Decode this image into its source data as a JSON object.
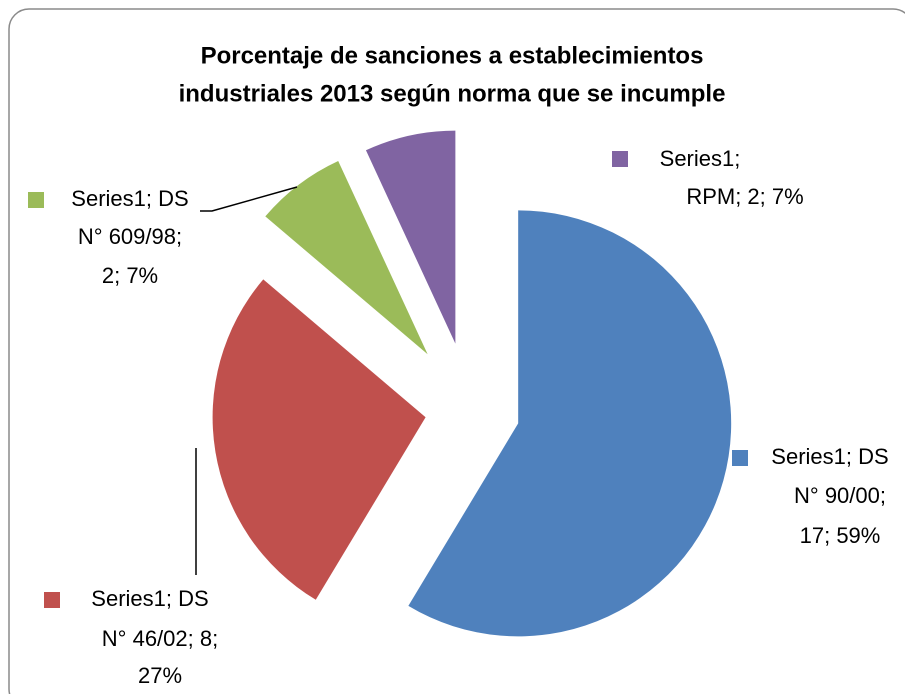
{
  "chart_data": {
    "type": "pie",
    "title": [
      "Porcentaje de sanciones a establecimientos",
      "industriales 2013 según norma que se incumple"
    ],
    "values": [
      17,
      8,
      2,
      2
    ],
    "value_labels": [
      [
        "Series1; DS",
        "N° 90/00;",
        "17; 59%"
      ],
      [
        "Series1; DS",
        "N° 46/02; 8;",
        "27%"
      ],
      [
        "Series1; DS",
        "N° 609/98;",
        "2; 7%"
      ],
      [
        "Series1;",
        "RPM; 2; 7%"
      ]
    ],
    "colors": [
      "#4f81bd",
      "#c0504d",
      "#9bbb59",
      "#8064a2"
    ]
  }
}
